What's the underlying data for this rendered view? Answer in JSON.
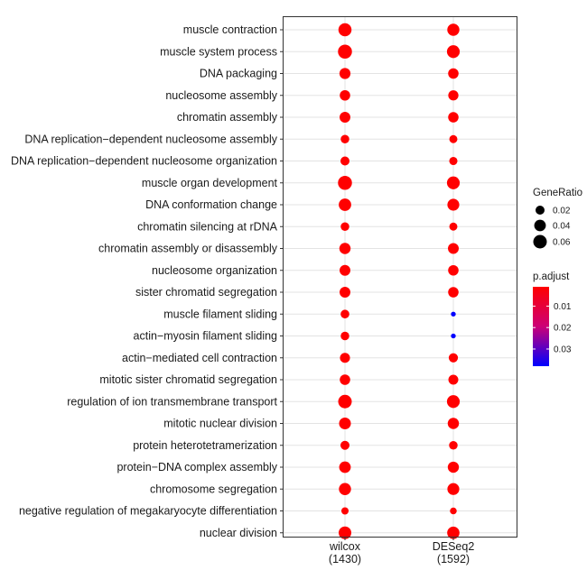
{
  "chart_data": {
    "type": "scatter",
    "subtype": "dotplot",
    "x_categories": [
      {
        "name": "wilcox",
        "count": "(1430)"
      },
      {
        "name": "DESeq2",
        "count": "(1592)"
      }
    ],
    "terms": [
      "muscle contraction",
      "muscle system process",
      "DNA packaging",
      "nucleosome assembly",
      "chromatin assembly",
      "DNA replication−dependent nucleosome assembly",
      "DNA replication−dependent nucleosome organization",
      "muscle organ development",
      "DNA conformation change",
      "chromatin silencing at rDNA",
      "chromatin assembly or disassembly",
      "nucleosome organization",
      "sister chromatid segregation",
      "muscle filament sliding",
      "actin−myosin filament sliding",
      "actin−mediated cell contraction",
      "mitotic sister chromatid segregation",
      "regulation of ion transmembrane transport",
      "mitotic nuclear division",
      "protein heterotetramerization",
      "protein−DNA complex assembly",
      "chromosome segregation",
      "negative regulation of megakaryocyte differentiation",
      "nuclear division"
    ],
    "series": [
      {
        "name": "wilcox",
        "gene_ratio": [
          0.055,
          0.065,
          0.035,
          0.03,
          0.033,
          0.017,
          0.02,
          0.065,
          0.048,
          0.017,
          0.037,
          0.033,
          0.033,
          0.018,
          0.017,
          0.027,
          0.03,
          0.06,
          0.042,
          0.02,
          0.04,
          0.045,
          0.01,
          0.05
        ],
        "p_adjust": [
          0.001,
          0.001,
          0.001,
          0.001,
          0.001,
          0.001,
          0.001,
          0.001,
          0.001,
          0.001,
          0.001,
          0.001,
          0.001,
          0.001,
          0.001,
          0.001,
          0.001,
          0.001,
          0.001,
          0.001,
          0.001,
          0.001,
          0.001,
          0.001
        ]
      },
      {
        "name": "DESeq2",
        "gene_ratio": [
          0.045,
          0.052,
          0.03,
          0.028,
          0.03,
          0.014,
          0.015,
          0.052,
          0.043,
          0.014,
          0.033,
          0.03,
          0.03,
          0.002,
          0.002,
          0.021,
          0.026,
          0.052,
          0.037,
          0.017,
          0.036,
          0.043,
          0.008,
          0.047
        ],
        "p_adjust": [
          0.001,
          0.001,
          0.001,
          0.001,
          0.001,
          0.001,
          0.001,
          0.001,
          0.001,
          0.001,
          0.001,
          0.001,
          0.001,
          0.038,
          0.038,
          0.001,
          0.001,
          0.001,
          0.001,
          0.001,
          0.001,
          0.001,
          0.001,
          0.001
        ]
      }
    ],
    "size_legend": {
      "title": "GeneRatio",
      "values": [
        0.02,
        0.04,
        0.06
      ],
      "labels": [
        "0.02",
        "0.04",
        "0.06"
      ]
    },
    "color_legend": {
      "title": "p.adjust",
      "range": [
        0.001,
        0.038
      ],
      "ticks": [
        0.01,
        0.02,
        0.03
      ],
      "tick_labels": [
        "0.01",
        "0.02",
        "0.03"
      ],
      "low_color": "#ff0000",
      "high_color": "#0000ff"
    },
    "grid": true,
    "legend_position": "right"
  }
}
